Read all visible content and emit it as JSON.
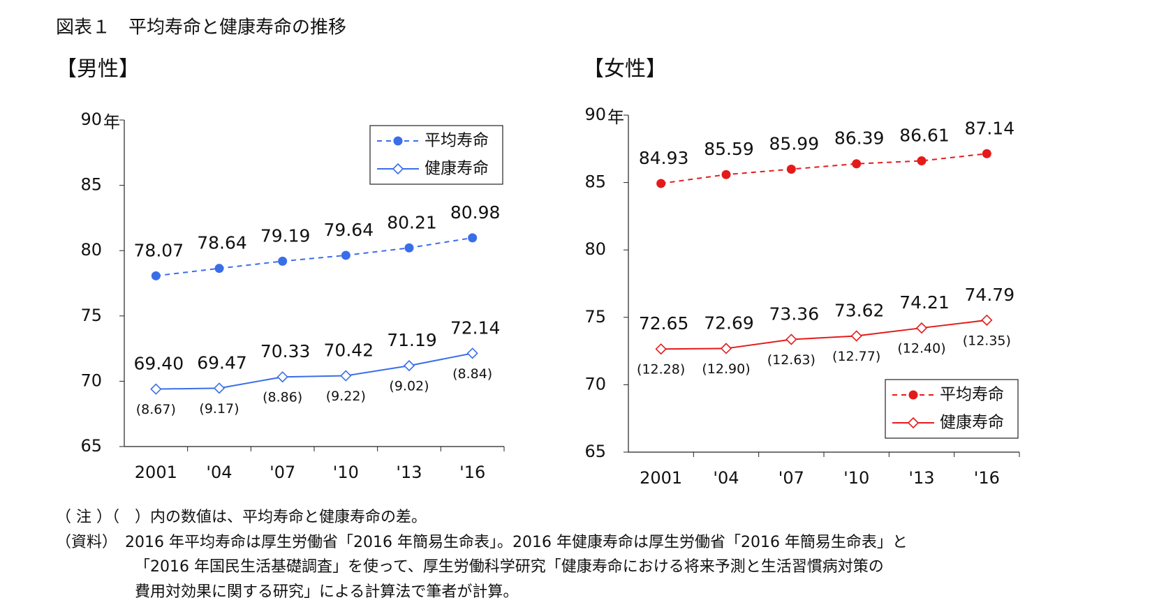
{
  "title": "図表１　平均寿命と健康寿命の推移",
  "notes": [
    "（ 注 ）（　）内の数値は、平均寿命と健康寿命の差。",
    "（資料）　2016 年平均寿命は厚生労働省「2016 年簡易生命表」。2016 年健康寿命は厚生労働省「2016 年簡易生命表」と",
    "「2016 年国民生活基礎調査」を使って、厚生労働科学研究「健康寿命における将来予測と生活習慣病対策の",
    "費用対効果に関する研究」による計算法で筆者が計算。"
  ],
  "chart_data": [
    {
      "type": "line",
      "title": "【男性】",
      "ylabel": "年",
      "categories": [
        "2001",
        "'04",
        "'07",
        "'10",
        "'13",
        "'16"
      ],
      "ylim": [
        65,
        90
      ],
      "yticks": [
        65,
        70,
        75,
        80,
        85,
        90
      ],
      "legend": "upper right",
      "series": [
        {
          "name": "平均寿命",
          "color": "#3a6ee8",
          "line_style": "dashed",
          "marker": "circle",
          "values": [
            78.07,
            78.64,
            79.19,
            79.64,
            80.21,
            80.98
          ],
          "value_labels": [
            "78.07",
            "78.64",
            "79.19",
            "79.64",
            "80.21",
            "80.98"
          ]
        },
        {
          "name": "健康寿命",
          "color": "#3a6ee8",
          "line_style": "solid",
          "marker": "diamond",
          "values": [
            69.4,
            69.47,
            70.33,
            70.42,
            71.19,
            72.14
          ],
          "value_labels": [
            "69.40",
            "69.47",
            "70.33",
            "70.42",
            "71.19",
            "72.14"
          ],
          "gap_labels": [
            "(8.67)",
            "(9.17)",
            "(8.86)",
            "(9.22)",
            "(9.02)",
            "(8.84)"
          ]
        }
      ]
    },
    {
      "type": "line",
      "title": "【女性】",
      "ylabel": "年",
      "categories": [
        "2001",
        "'04",
        "'07",
        "'10",
        "'13",
        "'16"
      ],
      "ylim": [
        65,
        90
      ],
      "yticks": [
        65,
        70,
        75,
        80,
        85,
        90
      ],
      "legend": "lower right",
      "series": [
        {
          "name": "平均寿命",
          "color": "#e41b1b",
          "line_style": "dashed",
          "marker": "circle",
          "values": [
            84.93,
            85.59,
            85.99,
            86.39,
            86.61,
            87.14
          ],
          "value_labels": [
            "84.93",
            "85.59",
            "85.99",
            "86.39",
            "86.61",
            "87.14"
          ]
        },
        {
          "name": "健康寿命",
          "color": "#e41b1b",
          "line_style": "solid",
          "marker": "diamond",
          "values": [
            72.65,
            72.69,
            73.36,
            73.62,
            74.21,
            74.79
          ],
          "value_labels": [
            "72.65",
            "72.69",
            "73.36",
            "73.62",
            "74.21",
            "74.79"
          ],
          "gap_labels": [
            "(12.28)",
            "(12.90)",
            "(12.63)",
            "(12.77)",
            "(12.40)",
            "(12.35)"
          ]
        }
      ]
    }
  ]
}
